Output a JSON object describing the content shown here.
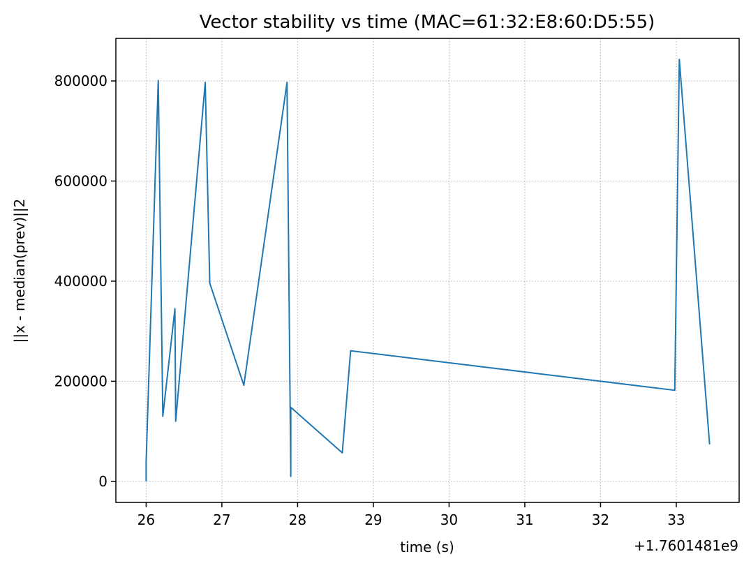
{
  "chart_data": {
    "type": "line",
    "title": "Vector stability vs time (MAC=61:32:E8:60:D5:55)",
    "xlabel": "time (s)",
    "ylabel": "||x - median(prev)||2",
    "x_offset_label": "+1.7601481e9",
    "xlim": [
      25.6,
      33.83
    ],
    "ylim": [
      -42000,
      885000
    ],
    "x_ticks": [
      26,
      27,
      28,
      29,
      30,
      31,
      32,
      33
    ],
    "x_tick_labels": [
      "26",
      "27",
      "28",
      "29",
      "30",
      "31",
      "32",
      "33"
    ],
    "y_ticks": [
      0,
      200000,
      400000,
      600000,
      800000
    ],
    "y_tick_labels": [
      "0",
      "200000",
      "400000",
      "600000",
      "800000"
    ],
    "grid": true,
    "series": [
      {
        "color": "#1f77b4",
        "points": [
          [
            26.0,
            0
          ],
          [
            26.0,
            40000
          ],
          [
            26.16,
            801000
          ],
          [
            26.22,
            130000
          ],
          [
            26.38,
            345000
          ],
          [
            26.39,
            120000
          ],
          [
            26.78,
            797000
          ],
          [
            26.84,
            396000
          ],
          [
            27.29,
            192000
          ],
          [
            27.86,
            797000
          ],
          [
            27.91,
            10000
          ],
          [
            27.91,
            148000
          ],
          [
            28.59,
            57000
          ],
          [
            28.7,
            261000
          ],
          [
            32.98,
            182000
          ],
          [
            33.04,
            843000
          ],
          [
            33.44,
            74000
          ]
        ]
      }
    ]
  }
}
